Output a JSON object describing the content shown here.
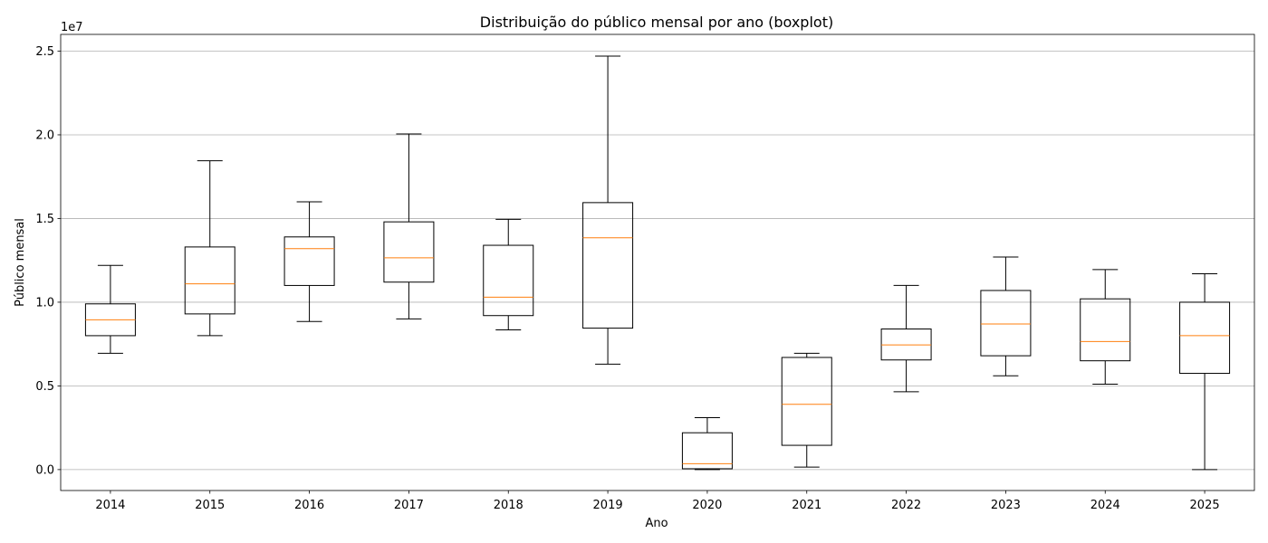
{
  "chart_data": {
    "type": "boxplot",
    "title": "Distribuição do público mensal por ano (boxplot)",
    "xlabel": "Ano",
    "ylabel": "Público mensal",
    "y_multiplier_label": "1e7",
    "ylim": [
      -1250000,
      26000000
    ],
    "yticks": [
      0,
      5000000,
      10000000,
      15000000,
      20000000,
      25000000
    ],
    "ytick_labels": [
      "0.0",
      "0.5",
      "1.0",
      "1.5",
      "2.0",
      "2.5"
    ],
    "grid": "horizontal",
    "box_color": "#000000",
    "median_color": "#ff7f0e",
    "categories": [
      "2014",
      "2015",
      "2016",
      "2017",
      "2018",
      "2019",
      "2020",
      "2021",
      "2022",
      "2023",
      "2024",
      "2025"
    ],
    "boxes": [
      {
        "whisker_low": 6950000,
        "q1": 8000000,
        "median": 8950000,
        "q3": 9900000,
        "whisker_high": 12200000
      },
      {
        "whisker_low": 8000000,
        "q1": 9300000,
        "median": 11100000,
        "q3": 13300000,
        "whisker_high": 18450000
      },
      {
        "whisker_low": 8850000,
        "q1": 11000000,
        "median": 13200000,
        "q3": 13900000,
        "whisker_high": 16000000
      },
      {
        "whisker_low": 9000000,
        "q1": 11200000,
        "median": 12650000,
        "q3": 14800000,
        "whisker_high": 20050000
      },
      {
        "whisker_low": 8350000,
        "q1": 9200000,
        "median": 10300000,
        "q3": 13400000,
        "whisker_high": 14950000
      },
      {
        "whisker_low": 6300000,
        "q1": 8450000,
        "median": 13850000,
        "q3": 15950000,
        "whisker_high": 24700000
      },
      {
        "whisker_low": 0,
        "q1": 50000,
        "median": 350000,
        "q3": 2200000,
        "whisker_high": 3100000
      },
      {
        "whisker_low": 150000,
        "q1": 1450000,
        "median": 3900000,
        "q3": 6700000,
        "whisker_high": 6950000
      },
      {
        "whisker_low": 4650000,
        "q1": 6550000,
        "median": 7450000,
        "q3": 8400000,
        "whisker_high": 11000000
      },
      {
        "whisker_low": 5600000,
        "q1": 6800000,
        "median": 8700000,
        "q3": 10700000,
        "whisker_high": 12700000
      },
      {
        "whisker_low": 5100000,
        "q1": 6500000,
        "median": 7650000,
        "q3": 10200000,
        "whisker_high": 11950000
      },
      {
        "whisker_low": 0,
        "q1": 5750000,
        "median": 8000000,
        "q3": 10000000,
        "whisker_high": 11700000
      }
    ]
  }
}
